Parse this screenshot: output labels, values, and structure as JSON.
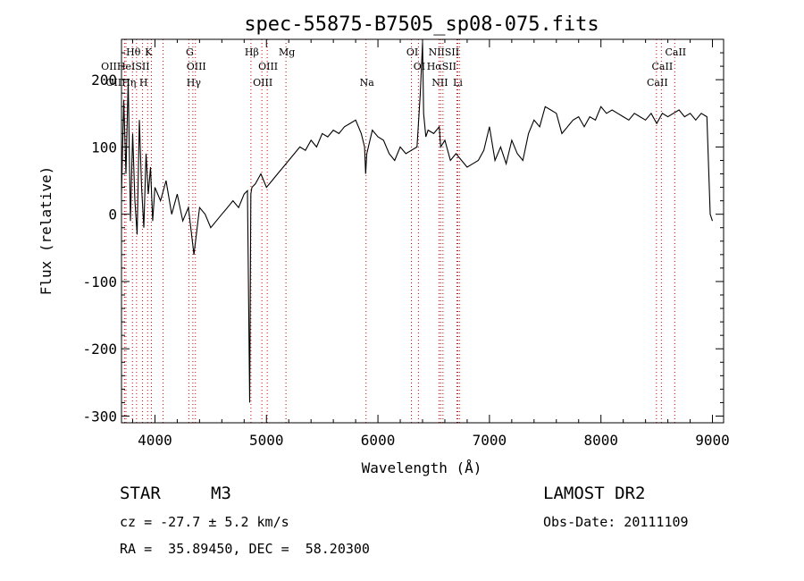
{
  "chart_data": {
    "type": "line",
    "title": "spec-55875-B7505_sp08-075.fits",
    "xlabel": "Wavelength (Å)",
    "ylabel": "Flux (relative)",
    "xlim": [
      3700,
      9100
    ],
    "ylim": [
      -310,
      260
    ],
    "xticks": [
      4000,
      5000,
      6000,
      7000,
      8000,
      9000
    ],
    "yticks": [
      -300,
      -200,
      -100,
      0,
      100,
      200
    ],
    "line_color": "#000000",
    "marker_color": "#cc0000",
    "series": [
      {
        "x": [
          3700,
          3720,
          3740,
          3760,
          3780,
          3800,
          3820,
          3840,
          3860,
          3880,
          3900,
          3920,
          3940,
          3960,
          3980,
          4000,
          4050,
          4100,
          4150,
          4200,
          4250,
          4300,
          4350,
          4400,
          4450,
          4500,
          4550,
          4600,
          4650,
          4700,
          4750,
          4800,
          4830,
          4850,
          4860,
          4870,
          4900,
          4950,
          5000,
          5050,
          5100,
          5150,
          5200,
          5250,
          5300,
          5350,
          5400,
          5450,
          5500,
          5550,
          5600,
          5650,
          5700,
          5750,
          5800,
          5850,
          5880,
          5890,
          5900,
          5950,
          6000,
          6050,
          6100,
          6150,
          6200,
          6250,
          6300,
          6350,
          6380,
          6400,
          6410,
          6430,
          6450,
          6500,
          6550,
          6563,
          6600,
          6650,
          6700,
          6750,
          6800,
          6850,
          6900,
          6950,
          7000,
          7050,
          7100,
          7150,
          7200,
          7250,
          7300,
          7350,
          7400,
          7450,
          7500,
          7550,
          7600,
          7650,
          7700,
          7750,
          7800,
          7850,
          7900,
          7950,
          8000,
          8050,
          8100,
          8150,
          8200,
          8250,
          8300,
          8350,
          8400,
          8450,
          8500,
          8550,
          8600,
          8650,
          8700,
          8750,
          8800,
          8850,
          8900,
          8950,
          8980,
          9000
        ],
        "y": [
          30,
          170,
          60,
          200,
          -10,
          120,
          20,
          -30,
          140,
          40,
          -20,
          90,
          30,
          70,
          -10,
          40,
          20,
          50,
          0,
          30,
          -10,
          10,
          -60,
          10,
          0,
          -20,
          -10,
          0,
          10,
          20,
          10,
          30,
          35,
          -280,
          30,
          40,
          45,
          60,
          40,
          50,
          60,
          70,
          80,
          90,
          100,
          95,
          110,
          100,
          120,
          115,
          125,
          120,
          130,
          135,
          140,
          120,
          100,
          60,
          90,
          125,
          115,
          110,
          90,
          80,
          100,
          90,
          95,
          100,
          180,
          255,
          150,
          115,
          125,
          120,
          130,
          100,
          110,
          80,
          90,
          80,
          70,
          75,
          80,
          95,
          130,
          80,
          100,
          75,
          110,
          90,
          80,
          120,
          140,
          130,
          160,
          155,
          150,
          120,
          130,
          140,
          145,
          130,
          145,
          140,
          160,
          150,
          155,
          150,
          145,
          140,
          150,
          145,
          140,
          150,
          135,
          150,
          145,
          150,
          155,
          145,
          150,
          140,
          150,
          145,
          0,
          -10
        ]
      }
    ],
    "lines": [
      {
        "name": "Hθ",
        "wl": 3798
      },
      {
        "name": "OII",
        "wl": 3727
      },
      {
        "name": "OIII",
        "wl": 3740
      },
      {
        "name": "Hη",
        "wl": 3835
      },
      {
        "name": "HeI",
        "wl": 3889
      },
      {
        "name": "K",
        "wl": 3934
      },
      {
        "name": "H",
        "wl": 3968
      },
      {
        "name": "SII",
        "wl": 4072
      },
      {
        "name": "G",
        "wl": 4304
      },
      {
        "name": "Hγ",
        "wl": 4340
      },
      {
        "name": "OIII",
        "wl": 4363
      },
      {
        "name": "Hβ",
        "wl": 4861
      },
      {
        "name": "OIII",
        "wl": 4959
      },
      {
        "name": "OIII",
        "wl": 5007
      },
      {
        "name": "Mg",
        "wl": 5175
      },
      {
        "name": "Na",
        "wl": 5893
      },
      {
        "name": "OI",
        "wl": 6300
      },
      {
        "name": "OI",
        "wl": 6363
      },
      {
        "name": "NII",
        "wl": 6548
      },
      {
        "name": "Hα",
        "wl": 6563
      },
      {
        "name": "NII",
        "wl": 6583
      },
      {
        "name": "SII",
        "wl": 6716
      },
      {
        "name": "Li",
        "wl": 6708
      },
      {
        "name": "SII",
        "wl": 6731
      },
      {
        "name": "CaII",
        "wl": 8498
      },
      {
        "name": "CaII",
        "wl": 8542
      },
      {
        "name": "CaII",
        "wl": 8662
      }
    ],
    "line_label_rows": [
      {
        "row": 0,
        "items": [
          {
            "text": "Hθ",
            "wl": 3798
          },
          {
            "text": "K",
            "wl": 3934
          },
          {
            "text": "G",
            "wl": 4304
          },
          {
            "text": "Hβ",
            "wl": 4861
          },
          {
            "text": "Mg",
            "wl": 5175
          },
          {
            "text": "OI",
            "wl": 6300
          },
          {
            "text": "NIISII",
            "wl": 6583
          },
          {
            "text": "CaII",
            "wl": 8662
          }
        ]
      },
      {
        "row": 1,
        "items": [
          {
            "text": "OIIHeISII",
            "wl": 3727
          },
          {
            "text": "OIII",
            "wl": 4363
          },
          {
            "text": "OIII",
            "wl": 5007
          },
          {
            "text": "OI",
            "wl": 6363
          },
          {
            "text": "HαSII",
            "wl": 6563
          },
          {
            "text": "CaII",
            "wl": 8542
          }
        ]
      },
      {
        "row": 2,
        "items": [
          {
            "text": "OIIHη H",
            "wl": 3740
          },
          {
            "text": "Hγ",
            "wl": 4340
          },
          {
            "text": "OIII",
            "wl": 4959
          },
          {
            "text": "Na",
            "wl": 5893
          },
          {
            "text": "NII",
            "wl": 6548
          },
          {
            "text": "Li",
            "wl": 6708
          },
          {
            "text": "CaII",
            "wl": 8498
          }
        ]
      }
    ]
  },
  "info": {
    "class_label": "STAR",
    "subclass": "M3",
    "survey": "LAMOST DR2",
    "cz": "cz = -27.7 ± 5.2 km/s",
    "obs_date": "Obs-Date: 20111109",
    "coords": "RA =  35.89450, DEC =  58.20300"
  }
}
